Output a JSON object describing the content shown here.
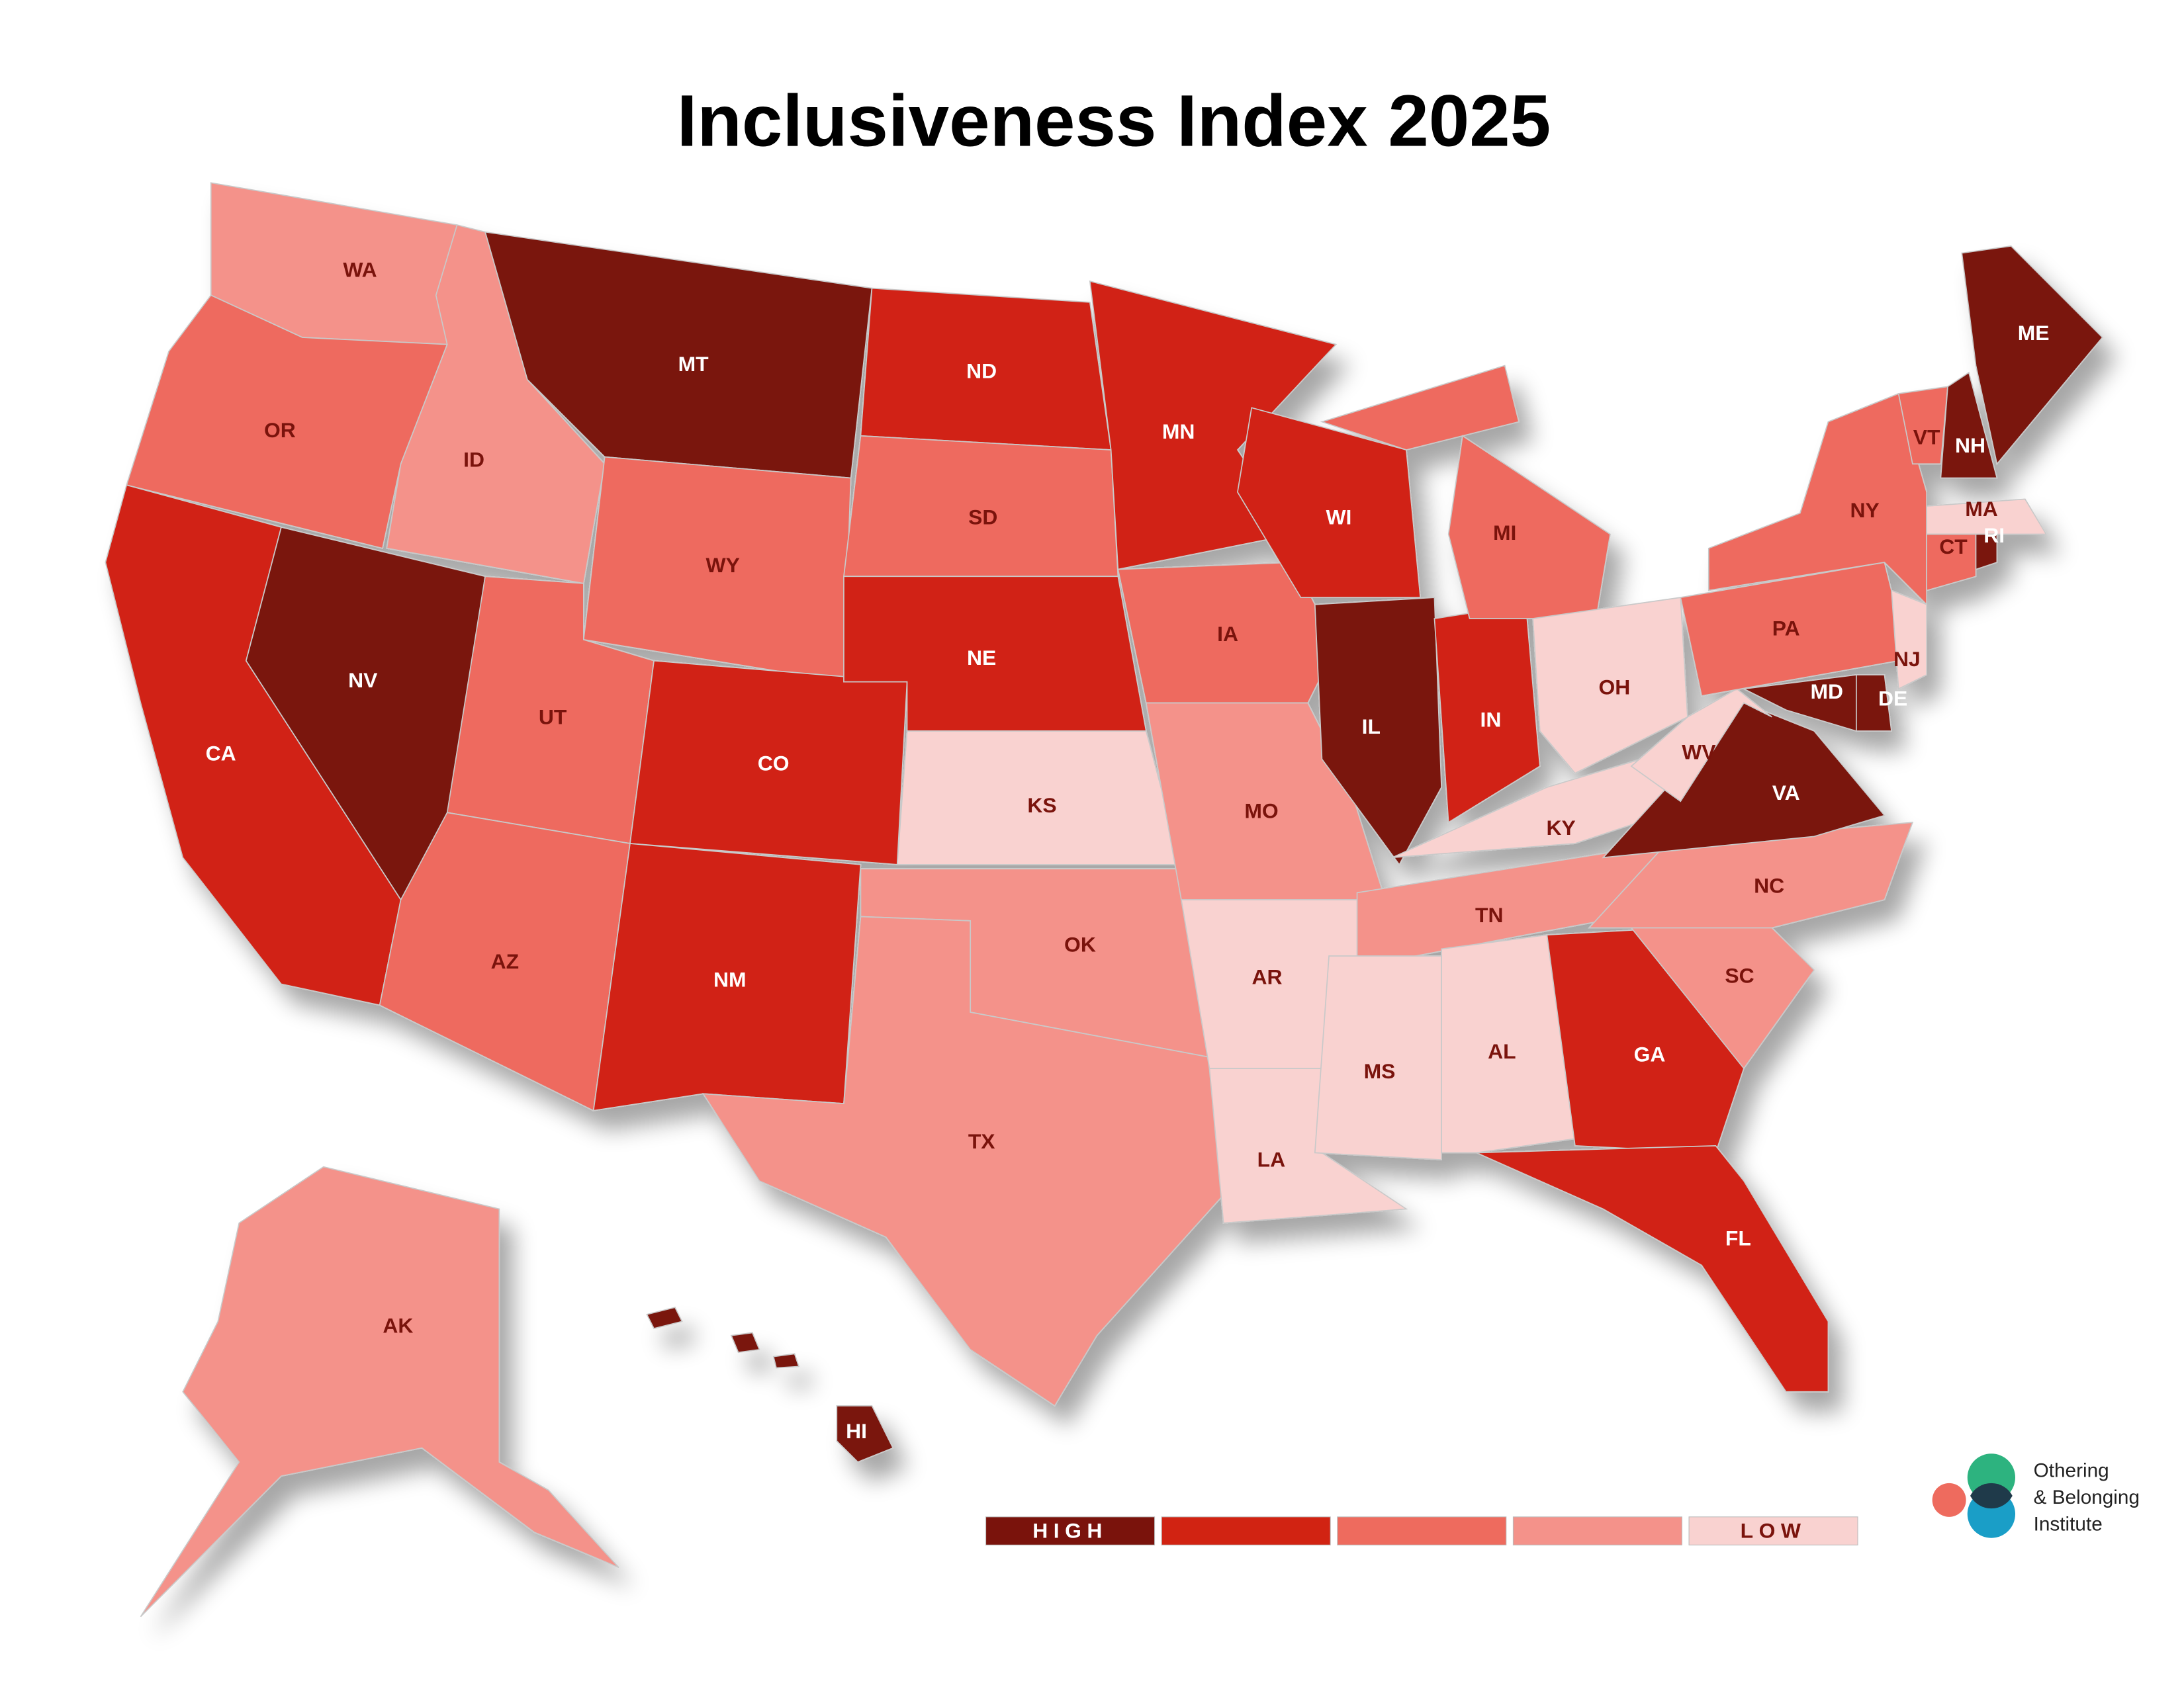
{
  "map": {
    "title": "Inclusiveness Index 2025",
    "states": [
      {
        "label": "WA",
        "color": "#f4928a"
      },
      {
        "label": "OR",
        "color": "#ee6b5e"
      },
      {
        "label": "CA",
        "color": "#d12312"
      },
      {
        "label": "NV",
        "color": "#7a130c"
      },
      {
        "label": "ID",
        "color": "#f4928a"
      },
      {
        "label": "MT",
        "color": "#7a130c"
      },
      {
        "label": "WY",
        "color": "#ee6b5e"
      },
      {
        "label": "UT",
        "color": "#ee6b5e"
      },
      {
        "label": "AZ",
        "color": "#ee6b5e"
      },
      {
        "label": "CO",
        "color": "#d12312"
      },
      {
        "label": "NM",
        "color": "#d12312"
      },
      {
        "label": "ND",
        "color": "#d12312"
      },
      {
        "label": "SD",
        "color": "#ee6b5e"
      },
      {
        "label": "NE",
        "color": "#d12312"
      },
      {
        "label": "KS",
        "color": "#f9d2d0"
      },
      {
        "label": "OK",
        "color": "#f4928a"
      },
      {
        "label": "TX",
        "color": "#f4928a"
      },
      {
        "label": "MN",
        "color": "#d12312"
      },
      {
        "label": "IA",
        "color": "#ee6b5e"
      },
      {
        "label": "MO",
        "color": "#f4928a"
      },
      {
        "label": "AR",
        "color": "#f9d2d0"
      },
      {
        "label": "LA",
        "color": "#f9d2d0"
      },
      {
        "label": "WI",
        "color": "#d12312"
      },
      {
        "label": "IL",
        "color": "#7a130c"
      },
      {
        "label": "IN",
        "color": "#d12312"
      },
      {
        "label": "MI",
        "color": "#ee6b5e"
      },
      {
        "label": "OH",
        "color": "#f9d2d0"
      },
      {
        "label": "KY",
        "color": "#f9d2d0"
      },
      {
        "label": "TN",
        "color": "#f4928a"
      },
      {
        "label": "MS",
        "color": "#f9d2d0"
      },
      {
        "label": "AL",
        "color": "#f9d2d0"
      },
      {
        "label": "GA",
        "color": "#d12312"
      },
      {
        "label": "FL",
        "color": "#d12312"
      },
      {
        "label": "SC",
        "color": "#f4928a"
      },
      {
        "label": "NC",
        "color": "#f4928a"
      },
      {
        "label": "VA",
        "color": "#7a130c"
      },
      {
        "label": "WV",
        "color": "#f9d2d0"
      },
      {
        "label": "PA",
        "color": "#ee6b5e"
      },
      {
        "label": "NY",
        "color": "#ee6b5e"
      },
      {
        "label": "VT",
        "color": "#ee6b5e"
      },
      {
        "label": "NH",
        "color": "#7a130c"
      },
      {
        "label": "ME",
        "color": "#7a130c"
      },
      {
        "label": "MA",
        "color": "#f9d2d0"
      },
      {
        "label": "CT",
        "color": "#ee6b5e"
      },
      {
        "label": "RI",
        "color": "#7a130c"
      },
      {
        "label": "NJ",
        "color": "#f9d2d0"
      },
      {
        "label": "MD",
        "color": "#7a130c"
      },
      {
        "label": "DE",
        "color": "#7a130c"
      },
      {
        "label": "AK",
        "color": "#f4928a"
      },
      {
        "label": "HI",
        "color": "#7a130c"
      }
    ],
    "legend": [
      {
        "label": "HIGH",
        "color": "#7a130c"
      },
      {
        "color": "#d12312"
      },
      {
        "color": "#ee6b5e"
      },
      {
        "color": "#f4928a"
      },
      {
        "label": "LOW",
        "color": "#f9d2d0"
      }
    ],
    "logo": [
      "Othering",
      "& Belonging",
      "Institute"
    ]
  }
}
